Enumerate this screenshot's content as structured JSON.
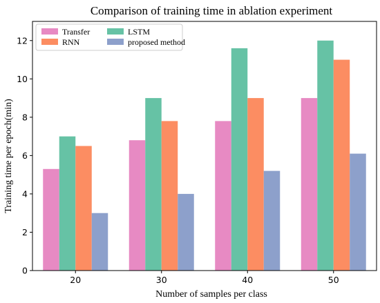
{
  "chart_data": {
    "type": "bar",
    "title": "Comparison of training time in ablation experiment",
    "xlabel": "Number of samples per class",
    "ylabel": "Training time per epoch(min)",
    "categories": [
      "20",
      "30",
      "40",
      "50"
    ],
    "series": [
      {
        "name": "Transfer",
        "color": "#e78ac3",
        "values": [
          5.3,
          6.8,
          7.8,
          9.0
        ]
      },
      {
        "name": "LSTM",
        "color": "#66c2a5",
        "values": [
          7.0,
          9.0,
          11.6,
          12.0
        ]
      },
      {
        "name": "RNN",
        "color": "#fc8d62",
        "values": [
          6.5,
          7.8,
          9.0,
          11.0
        ]
      },
      {
        "name": "proposed method",
        "color": "#8da0cb",
        "values": [
          3.0,
          4.0,
          5.2,
          6.1
        ]
      }
    ],
    "ylim": [
      0,
      13
    ],
    "yticks": [
      "0",
      "2",
      "4",
      "6",
      "8",
      "10",
      "12"
    ],
    "grid": false,
    "legend_position": "top-left"
  }
}
